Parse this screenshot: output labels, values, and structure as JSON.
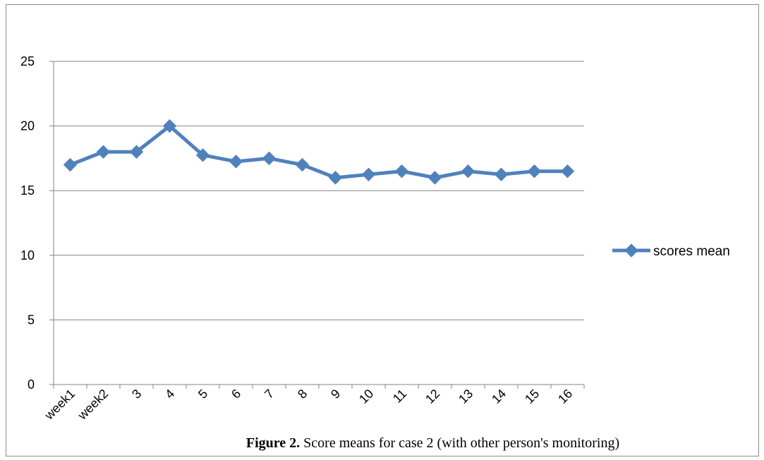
{
  "chart_data": {
    "type": "line",
    "categories": [
      "week1",
      "week2",
      "3",
      "4",
      "5",
      "6",
      "7",
      "8",
      "9",
      "10",
      "11",
      "12",
      "13",
      "14",
      "15",
      "16"
    ],
    "series": [
      {
        "name": "scores mean",
        "values": [
          17,
          18,
          18,
          20,
          17.75,
          17.25,
          17.5,
          17,
          16,
          16.25,
          16.5,
          16,
          16.5,
          16.25,
          16.5,
          16.5
        ],
        "color": "#4f81bd",
        "marker": "diamond"
      }
    ],
    "ylim": [
      0,
      25
    ],
    "yticks": [
      0,
      5,
      10,
      15,
      20,
      25
    ],
    "grid": true,
    "legend_position": "right"
  },
  "caption": {
    "label": "Figure 2.",
    "text": " Score means for case 2 (with other person's monitoring)"
  }
}
